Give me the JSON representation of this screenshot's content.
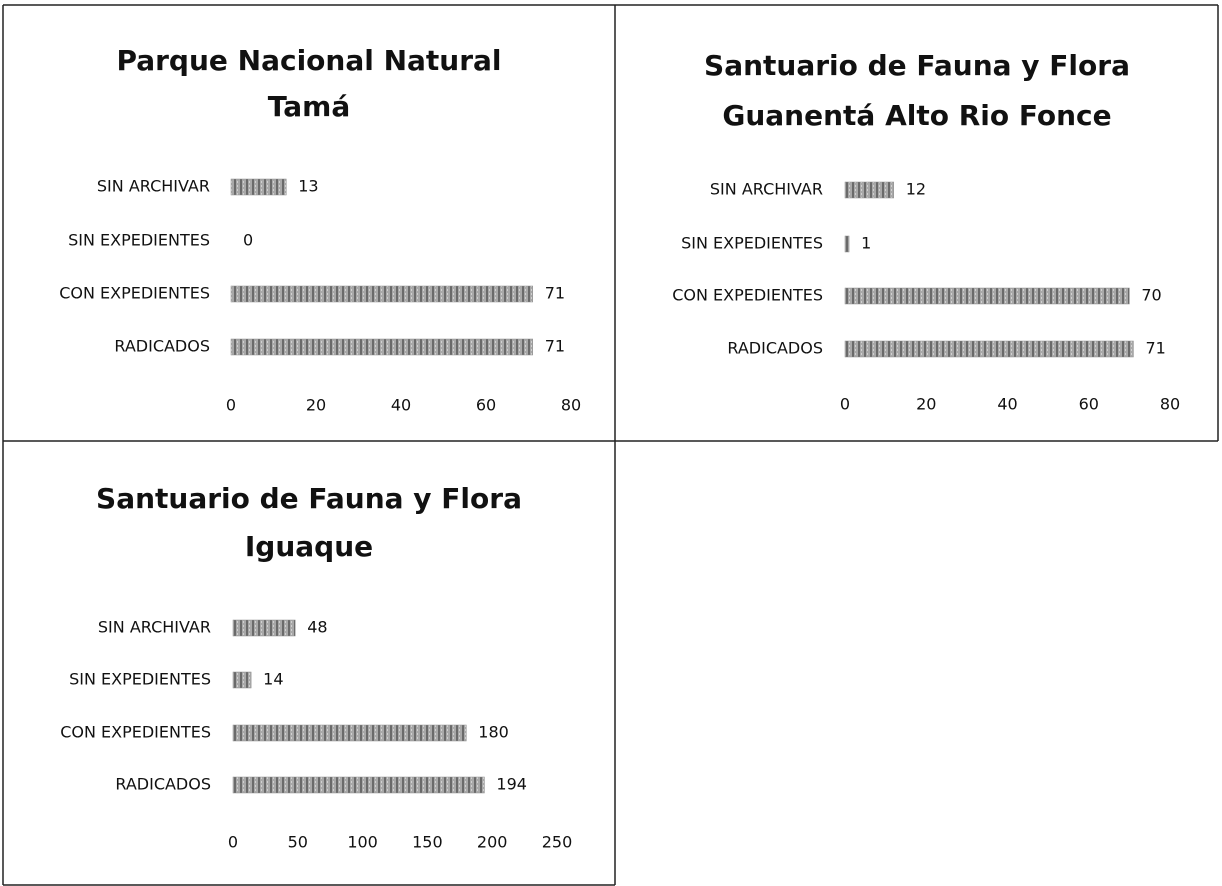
{
  "chart_data": [
    {
      "type": "bar",
      "title": [
        "Parque Nacional Natural",
        "Tamá"
      ],
      "categories": [
        "SIN ARCHIVAR",
        "SIN EXPEDIENTES",
        "CON EXPEDIENTES",
        "RADICADOS"
      ],
      "values": [
        13,
        0,
        71,
        71
      ],
      "color": "#8e8e8e",
      "xlim": [
        0,
        80
      ],
      "xticks": [
        0,
        20,
        40,
        60,
        80
      ]
    },
    {
      "type": "bar",
      "title": [
        "Santuario de Fauna y Flora",
        "Guanentá Alto Rio Fonce"
      ],
      "categories": [
        "SIN ARCHIVAR",
        "SIN EXPEDIENTES",
        "CON EXPEDIENTES",
        "RADICADOS"
      ],
      "values": [
        12,
        1,
        70,
        71
      ],
      "color": "#8e8e8e",
      "xlim": [
        0,
        80
      ],
      "xticks": [
        0,
        20,
        40,
        60,
        80
      ]
    },
    {
      "type": "bar",
      "title": [
        "Santuario de Fauna y Flora",
        "Iguaque"
      ],
      "categories": [
        "SIN ARCHIVAR",
        "SIN EXPEDIENTES",
        "CON EXPEDIENTES",
        "RADICADOS"
      ],
      "values": [
        48,
        14,
        180,
        194
      ],
      "color": "#8e8e8e",
      "xlim": [
        0,
        250
      ],
      "xticks": [
        0,
        50,
        100,
        150,
        200,
        250
      ]
    }
  ]
}
